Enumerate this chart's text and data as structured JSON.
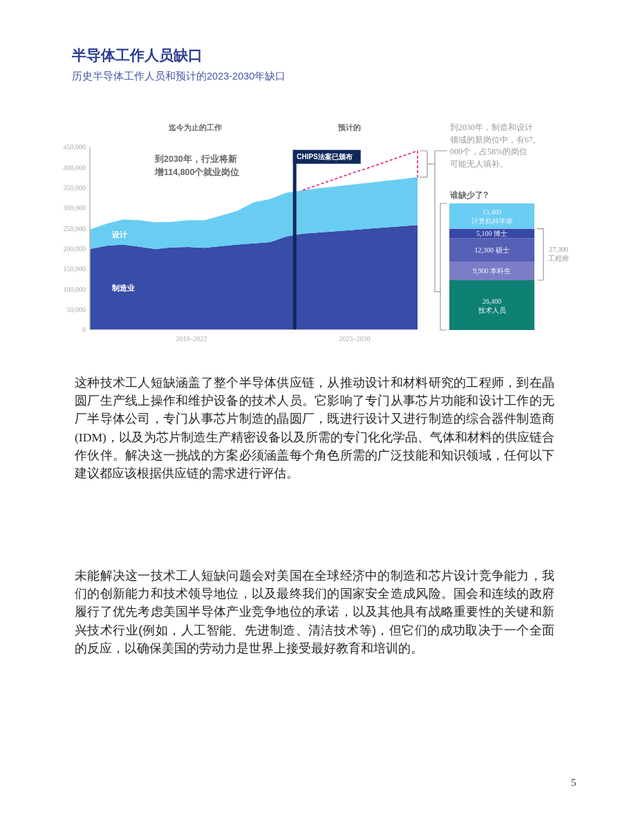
{
  "chart_data": [
    {
      "type": "area",
      "stacked": true,
      "title": "半导体工作人员缺口",
      "subtitle": "历史半导体工作人员和预计的2023-2030年缺口",
      "categories": [
        null,
        null,
        null,
        null,
        null,
        null,
        null,
        null,
        null,
        null,
        null,
        null,
        null,
        null,
        null,
        null,
        null,
        null,
        null,
        null,
        null
      ],
      "ylim": [
        0,
        450000
      ],
      "yticks": [
        0,
        {
          "value": 50000,
          "label": "50,000"
        },
        {
          "value": 100000,
          "label": "100,000"
        },
        {
          "value": 150000,
          "label": "150,000"
        },
        {
          "value": 200000,
          "label": "200,000"
        },
        {
          "value": 250000,
          "label": "250,000"
        },
        {
          "value": 300000,
          "label": "300,000"
        },
        {
          "value": 350000,
          "label": "350,000"
        },
        {
          "value": 400000,
          "label": "400,000"
        },
        {
          "value": 450000,
          "label": "450,000"
        }
      ],
      "series": [
        {
          "name": "制造业",
          "color": "#384ca8",
          "values": [
            199000,
            207000,
            210000,
            205000,
            199000,
            203000,
            204000,
            202000,
            206000,
            210000,
            213000,
            216000,
            230000,
            237000,
            240000,
            243000,
            246000,
            249000,
            252000,
            255000,
            258000
          ]
        },
        {
          "name": "设计",
          "color": "#69cdf2",
          "values": [
            48000,
            54000,
            62000,
            65000,
            66000,
            63000,
            66000,
            68000,
            75000,
            83000,
            101000,
            106000,
            108000,
            107000,
            109000,
            110000,
            112000,
            113000,
            115000,
            116000,
            118000
          ]
        },
        {
          "type": "line",
          "color": "#e5127f",
          "line_style": "dashed",
          "values": [
            null,
            null,
            null,
            null,
            null,
            null,
            null,
            null,
            null,
            null,
            null,
            null,
            null,
            344000,
            358000,
            372000,
            386000,
            399000,
            413000,
            427000,
            441000
          ]
        }
      ],
      "annotations": [
        "迄今为止的工作",
        "预计的",
        "到2030年，行业将新增114,800个就业岗位",
        "CHIPS法案已颁布",
        "到2030年，制造和设计领域的新岗位中，有67,000个，占58%的岗位可能无人填补。",
        "2010–2022",
        "2023–2030",
        "这种技术工人短缺涵盖了整个半导体供应链，从推动设计和材料研究的工程师，到在晶圆厂生产线上操作和维护设备的技术人员。它影响了专门从事芯片功能和设计工作的无厂半导体公司，专门从事芯片制造的晶圆厂，既进行设计又进行制造的综合器件制造商(IDM)，以及为芯片制造生产精密设备以及所需的专门化化学品、气体和材料的供应链合作伙伴。解决这一挑战的方案必须涵盖每个角色所需的广泛技能和知识领域，任何以下建议都应该根据供应链的需求进行评估。",
        "未能解决这一技术工人短缺问题会对美国在全球经济中的制造和芯片设计竞争能力，我们的创新能力和技术领导地位，以及最终我们的国家安全造成风险。国会和连续的政府履行了优先考虑美国半导体产业竞争地位的承诺，以及其他具有战略重要性的关键和新兴技术行业(例如，人工智能、先进制造、清洁技术等)，但它们的成功取决于一个全面的反应，以确保美国的劳动力是世界上接受最好教育和培训的。",
        "5"
      ]
    },
    {
      "type": "bar",
      "stacked": true,
      "title": "谁缺少了?",
      "categories": [
        null
      ],
      "series": [
        {
          "name": "技术人员",
          "color": "#0e8074",
          "values": [
            26400
          ],
          "value_labels": [
            "26,400"
          ]
        },
        {
          "name": "本科生",
          "color": "#7b7ec7",
          "values": [
            9900
          ],
          "value_labels": [
            "9,900"
          ]
        },
        {
          "name": "硕士",
          "color": "#5660b5",
          "values": [
            12300
          ],
          "value_labels": [
            "12,300"
          ]
        },
        {
          "name": "博士",
          "color": "#3848a6",
          "values": [
            5100
          ],
          "value_labels": [
            "5,100"
          ]
        },
        {
          "name": "计算机科学家",
          "color": "#6acdf2",
          "values": [
            13400
          ],
          "value_labels": [
            "13,400"
          ]
        }
      ],
      "annotations": [
        "27,300 工程师"
      ]
    }
  ]
}
